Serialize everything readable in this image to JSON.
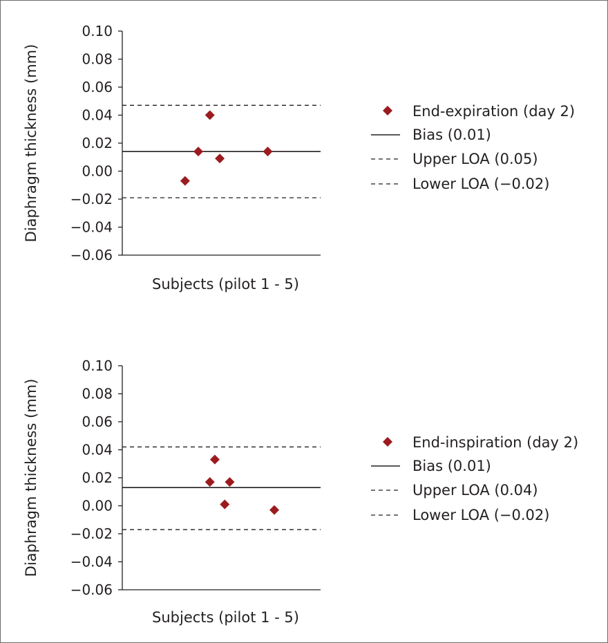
{
  "colors": {
    "marker": "#9b1b1f",
    "line": "#231f20",
    "frame": "#6d6d6d"
  },
  "chart_data": [
    {
      "type": "scatter",
      "id": "expiration",
      "ylabel": "Diaphragm thickness (mm)",
      "xlabel": "Subjects (pilot 1 - 5)",
      "ylim": [
        -0.06,
        0.1
      ],
      "xlim": [
        0,
        6
      ],
      "yticks": [
        "0.10",
        "0.08",
        "0.06",
        "0.04",
        "0.02",
        "0.00",
        "−0.02",
        "−0.04",
        "−0.06"
      ],
      "ytick_values": [
        0.1,
        0.08,
        0.06,
        0.04,
        0.02,
        0.0,
        -0.02,
        -0.04,
        -0.06
      ],
      "points": [
        {
          "x": 1.9,
          "y": -0.007
        },
        {
          "x": 2.3,
          "y": 0.014
        },
        {
          "x": 2.65,
          "y": 0.04
        },
        {
          "x": 2.95,
          "y": 0.009
        },
        {
          "x": 4.4,
          "y": 0.014
        }
      ],
      "bias": 0.014,
      "upper_loa": 0.047,
      "lower_loa": -0.019,
      "legend": [
        {
          "kind": "marker",
          "label": "End-expiration (day 2)"
        },
        {
          "kind": "solid",
          "label": "Bias (0.01)"
        },
        {
          "kind": "dashed",
          "label": "Upper LOA (0.05)"
        },
        {
          "kind": "dashed",
          "label": "Lower LOA (−0.02)"
        }
      ]
    },
    {
      "type": "scatter",
      "id": "inspiration",
      "ylabel": "Diaphragm thickness (mm)",
      "xlabel": "Subjects (pilot 1 - 5)",
      "ylim": [
        -0.06,
        0.1
      ],
      "xlim": [
        0,
        6
      ],
      "yticks": [
        "0.10",
        "0.08",
        "0.06",
        "0.04",
        "0.02",
        "0.00",
        "−0.02",
        "−0.04",
        "−0.06"
      ],
      "ytick_values": [
        0.1,
        0.08,
        0.06,
        0.04,
        0.02,
        0.0,
        -0.02,
        -0.04,
        -0.06
      ],
      "points": [
        {
          "x": 2.65,
          "y": 0.017
        },
        {
          "x": 2.8,
          "y": 0.033
        },
        {
          "x": 3.1,
          "y": 0.001
        },
        {
          "x": 3.25,
          "y": 0.017
        },
        {
          "x": 4.6,
          "y": -0.003
        }
      ],
      "bias": 0.013,
      "upper_loa": 0.042,
      "lower_loa": -0.017,
      "legend": [
        {
          "kind": "marker",
          "label": "End-inspiration (day 2)"
        },
        {
          "kind": "solid",
          "label": "Bias (0.01)"
        },
        {
          "kind": "dashed",
          "label": "Upper LOA (0.04)"
        },
        {
          "kind": "dashed",
          "label": "Lower LOA (−0.02)"
        }
      ]
    }
  ]
}
